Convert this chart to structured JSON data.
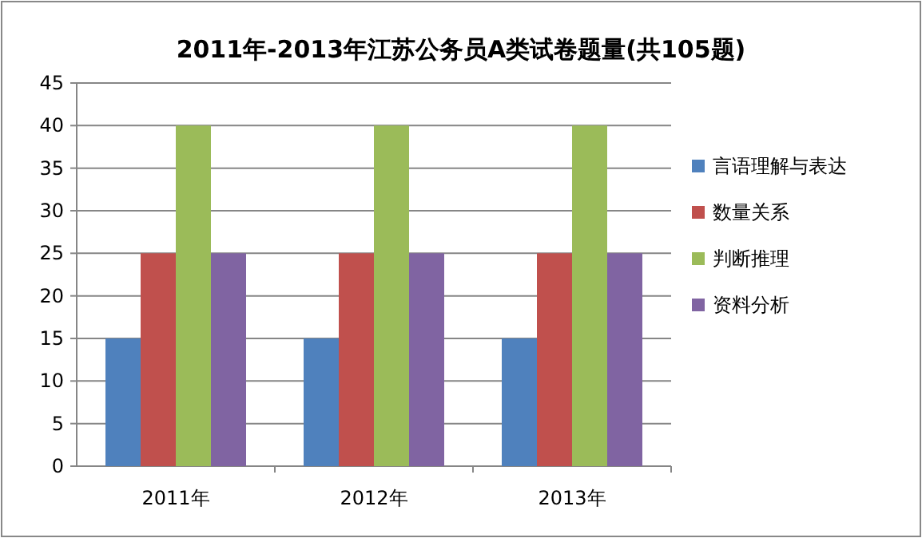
{
  "chart_data": {
    "type": "bar",
    "title": "2011年-2013年江苏公务员A类试卷题量(共105题)",
    "categories": [
      "2011年",
      "2012年",
      "2013年"
    ],
    "series": [
      {
        "name": "言语理解与表达",
        "color": "#4f81bd",
        "values": [
          15,
          15,
          15
        ]
      },
      {
        "name": "数量关系",
        "color": "#c0504d",
        "values": [
          25,
          25,
          25
        ]
      },
      {
        "name": "判断推理",
        "color": "#9bbb59",
        "values": [
          40,
          40,
          40
        ]
      },
      {
        "name": "资料分析",
        "color": "#8064a2",
        "values": [
          25,
          25,
          25
        ]
      }
    ],
    "ylim": [
      0,
      45
    ],
    "yticks": [
      0,
      5,
      10,
      15,
      20,
      25,
      30,
      35,
      40,
      45
    ],
    "grid": "y",
    "legend": "right"
  }
}
